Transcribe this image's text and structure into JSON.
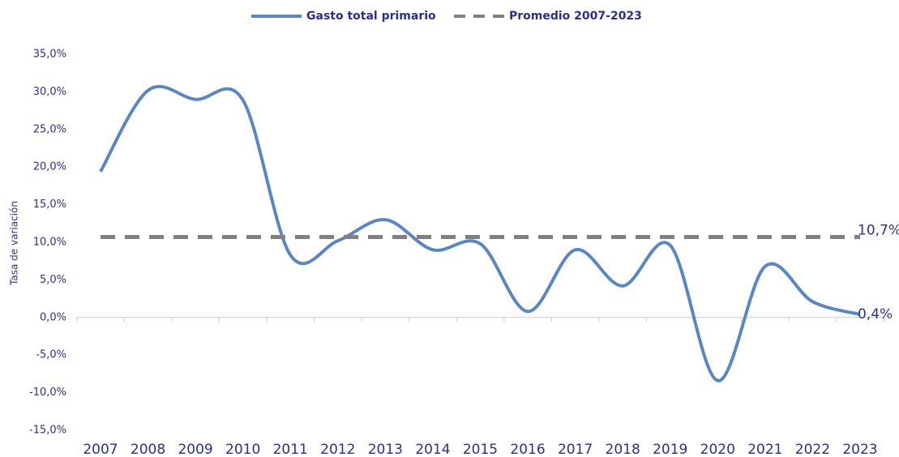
{
  "chart_data": {
    "type": "line",
    "y_label": "Tasa de variación",
    "categories": [
      "2007",
      "2008",
      "2009",
      "2010",
      "2011",
      "2012",
      "2013",
      "2014",
      "2015",
      "2016",
      "2017",
      "2018",
      "2019",
      "2020",
      "2021",
      "2022",
      "2023"
    ],
    "series": [
      {
        "name": "Gasto total primario",
        "color": "#5a87c2",
        "dash": false,
        "values": [
          19.4,
          30.2,
          29.0,
          28.9,
          8.3,
          10.2,
          13.0,
          9.0,
          9.8,
          0.8,
          9.0,
          4.2,
          9.6,
          -8.4,
          6.8,
          2.1,
          0.4
        ],
        "value_labels": [
          null,
          null,
          null,
          null,
          null,
          null,
          null,
          null,
          null,
          null,
          null,
          null,
          null,
          null,
          null,
          null,
          "0,4%"
        ]
      },
      {
        "name": "Promedio 2007-2023",
        "color": "#808080",
        "dash": true,
        "values": [
          10.7,
          10.7,
          10.7,
          10.7,
          10.7,
          10.7,
          10.7,
          10.7,
          10.7,
          10.7,
          10.7,
          10.7,
          10.7,
          10.7,
          10.7,
          10.7,
          10.7
        ],
        "value_labels": [
          null,
          null,
          null,
          null,
          null,
          null,
          null,
          null,
          null,
          null,
          null,
          null,
          null,
          null,
          null,
          null,
          "10,7%"
        ]
      }
    ],
    "ylim": [
      -15,
      35
    ],
    "yticks": [
      {
        "value": -15,
        "label": "-15,0%"
      },
      {
        "value": -10,
        "label": "-10,0%"
      },
      {
        "value": -5,
        "label": "-5,0%"
      },
      {
        "value": 0,
        "label": "0,0%"
      },
      {
        "value": 5,
        "label": "5,0%"
      },
      {
        "value": 10,
        "label": "10,0%"
      },
      {
        "value": 15,
        "label": "15,0%"
      },
      {
        "value": 20,
        "label": "20,0%"
      },
      {
        "value": 25,
        "label": "25,0%"
      },
      {
        "value": 30,
        "label": "30,0%"
      },
      {
        "value": 35,
        "label": "35,0%"
      }
    ],
    "grid": false,
    "legend": "top"
  }
}
